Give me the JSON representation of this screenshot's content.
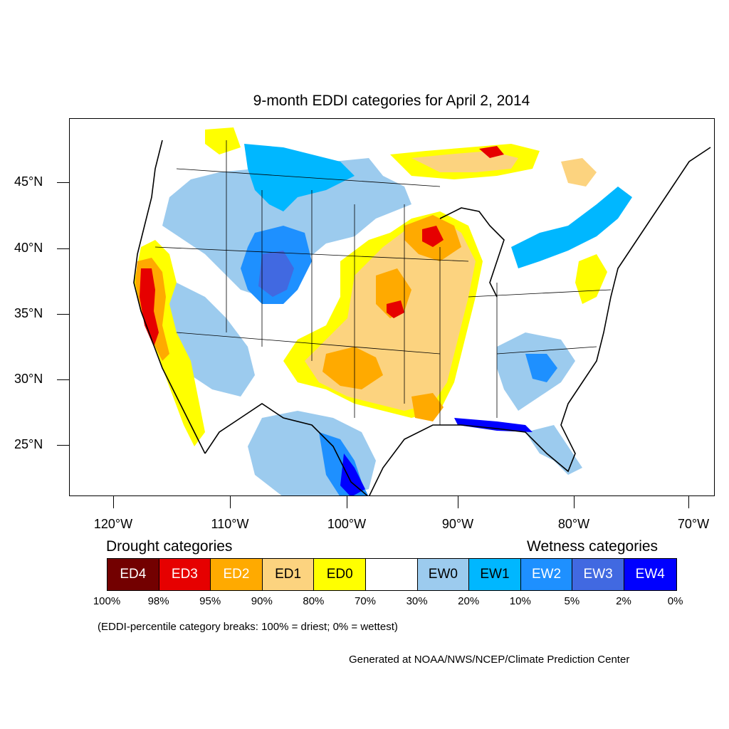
{
  "title": "9-month EDDI categories for April 2, 2014",
  "lat_labels": [
    "45°N",
    "40°N",
    "35°N",
    "30°N",
    "25°N"
  ],
  "lon_labels": [
    "120°W",
    "110°W",
    "100°W",
    "90°W",
    "80°W",
    "70°W"
  ],
  "legend": {
    "drought_heading": "Drought categories",
    "wetness_heading": "Wetness categories",
    "categories": [
      {
        "label": "ED4",
        "color": "#730000",
        "text_color": "#ffffff"
      },
      {
        "label": "ED3",
        "color": "#e60000",
        "text_color": "#ffffff"
      },
      {
        "label": "ED2",
        "color": "#ffaa00",
        "text_color": "#ffffff"
      },
      {
        "label": "ED1",
        "color": "#fcd37f",
        "text_color": "#000000"
      },
      {
        "label": "ED0",
        "color": "#ffff00",
        "text_color": "#000000"
      },
      {
        "label": "",
        "color": "#ffffff",
        "text_color": "#000000"
      },
      {
        "label": "EW0",
        "color": "#9ccbee",
        "text_color": "#000000"
      },
      {
        "label": "EW1",
        "color": "#00b7ff",
        "text_color": "#000000"
      },
      {
        "label": "EW2",
        "color": "#1e90ff",
        "text_color": "#ffffff"
      },
      {
        "label": "EW3",
        "color": "#4169e1",
        "text_color": "#ffffff"
      },
      {
        "label": "EW4",
        "color": "#0000ff",
        "text_color": "#ffffff"
      }
    ],
    "breaks": [
      "100%",
      "98%",
      "95%",
      "90%",
      "80%",
      "70%",
      "30%",
      "20%",
      "10%",
      "5%",
      "2%",
      "0%"
    ]
  },
  "note": "(EDDI-percentile category breaks: 100% = driest; 0% = wettest)",
  "credit": "Generated at NOAA/NWS/NCEP/Climate Prediction Center"
}
